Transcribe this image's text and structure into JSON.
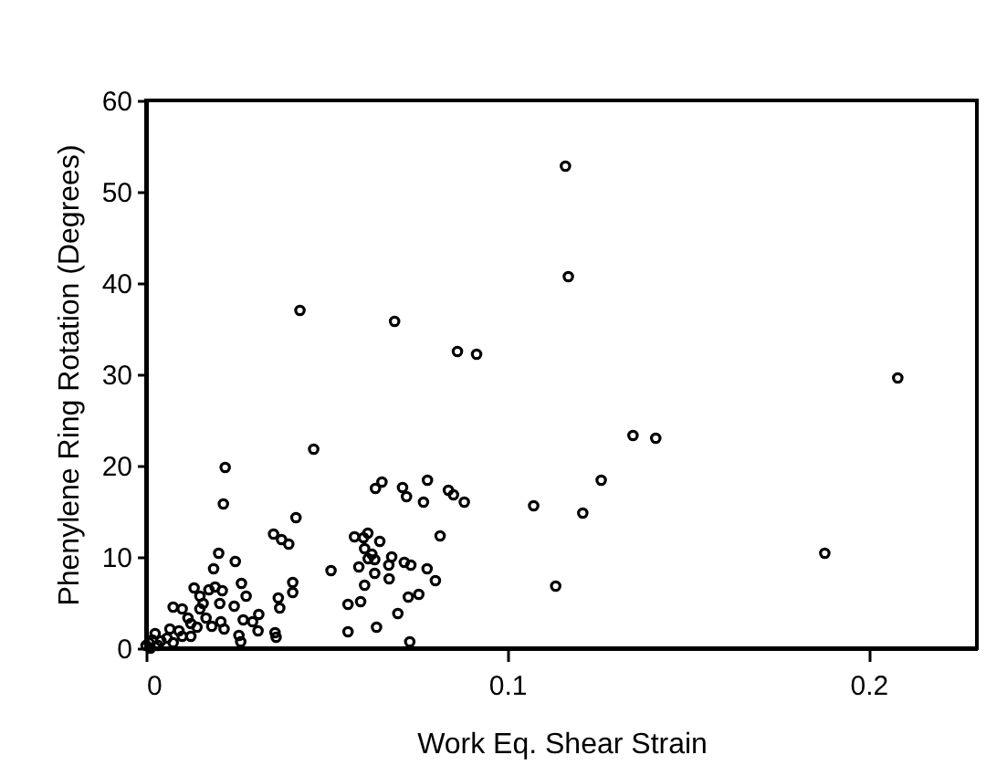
{
  "chart_data": {
    "type": "scatter",
    "xlabel": "Work Eq. Shear Strain",
    "ylabel": "Phenylene Ring Rotation (Degrees)",
    "xlim": [
      0,
      0.23
    ],
    "ylim": [
      0,
      60
    ],
    "xticks": [
      0,
      0.1,
      0.2
    ],
    "yticks": [
      0,
      10,
      20,
      30,
      40,
      50,
      60
    ],
    "grid": false,
    "marker": "circle",
    "series": [
      {
        "color": "#000000",
        "x": [
          0.1161,
          0.1169,
          0.0426,
          0.0688,
          0.0862,
          0.0915,
          0.2081,
          0.0464,
          0.0219,
          0.1348,
          0.1411,
          0.126,
          0.1073,
          0.1209,
          0.1879,
          0.1134,
          0.0214,
          0.0635,
          0.0653,
          0.071,
          0.0721,
          0.0779,
          0.0768,
          0.0837,
          0.0851,
          0.0881,
          0.0415,
          0.0814,
          0.0353,
          0.0375,
          0.0395,
          0.0577,
          0.0602,
          0.0614,
          0.0647,
          0.0605,
          0.0625,
          0.0589,
          0.0615,
          0.0633,
          0.068,
          0.0672,
          0.0715,
          0.0733,
          0.0778,
          0.0633,
          0.0673,
          0.0605,
          0.0801,
          0.0512,
          0.0559,
          0.0594,
          0.0726,
          0.0755,
          0.0697,
          0.0559,
          0.0638,
          0.073,
          0.0201,
          0.0247,
          0.0187,
          0.0264,
          0.0406,
          0.0277,
          0.0406,
          0.0366,
          0.037,
          0.0244,
          0.0312,
          0.0269,
          0.0295,
          0.0257,
          0.0262,
          0.031,
          0.0357,
          0.036,
          0.0133,
          0.0174,
          0.0191,
          0.0211,
          0.0149,
          0.0158,
          0.0204,
          0.0075,
          0.01,
          0.0149,
          0.0116,
          0.0166,
          0.0207,
          0.0182,
          0.0216,
          0.0141,
          0.0124,
          0.0091,
          0.0066,
          0.01,
          0.0124,
          0.0058,
          0.0025,
          0.0041,
          0.0008,
          0.0033,
          0.0017,
          0.0075,
          0,
          0.0012
        ],
        "values": [
          52.8,
          40.7,
          37.0,
          35.8,
          32.5,
          32.2,
          29.6,
          21.8,
          19.8,
          23.3,
          23.0,
          18.4,
          15.6,
          14.8,
          10.4,
          6.8,
          15.8,
          17.5,
          18.2,
          17.6,
          16.6,
          18.4,
          16.0,
          17.3,
          16.8,
          16.0,
          14.3,
          12.3,
          12.5,
          11.9,
          11.4,
          12.2,
          12.1,
          12.6,
          11.7,
          10.9,
          10.3,
          8.9,
          9.8,
          9.7,
          10.0,
          9.1,
          9.4,
          9.1,
          8.7,
          8.2,
          7.6,
          6.9,
          7.4,
          8.5,
          4.8,
          5.1,
          5.6,
          5.9,
          3.8,
          1.8,
          2.3,
          0.7,
          10.4,
          9.5,
          8.7,
          7.1,
          7.2,
          5.7,
          6.1,
          5.5,
          4.4,
          4.6,
          3.7,
          3.1,
          2.9,
          1.4,
          0.7,
          1.9,
          1.7,
          1.2,
          6.6,
          6.4,
          6.7,
          6.3,
          5.7,
          4.9,
          4.9,
          4.5,
          4.3,
          4.3,
          3.3,
          3.3,
          2.9,
          2.4,
          2.1,
          2.3,
          2.7,
          1.9,
          2.1,
          1.3,
          1.3,
          1.1,
          1.6,
          0.8,
          0.6,
          0.3,
          0.9,
          0.6,
          0.3,
          0
        ]
      }
    ]
  }
}
